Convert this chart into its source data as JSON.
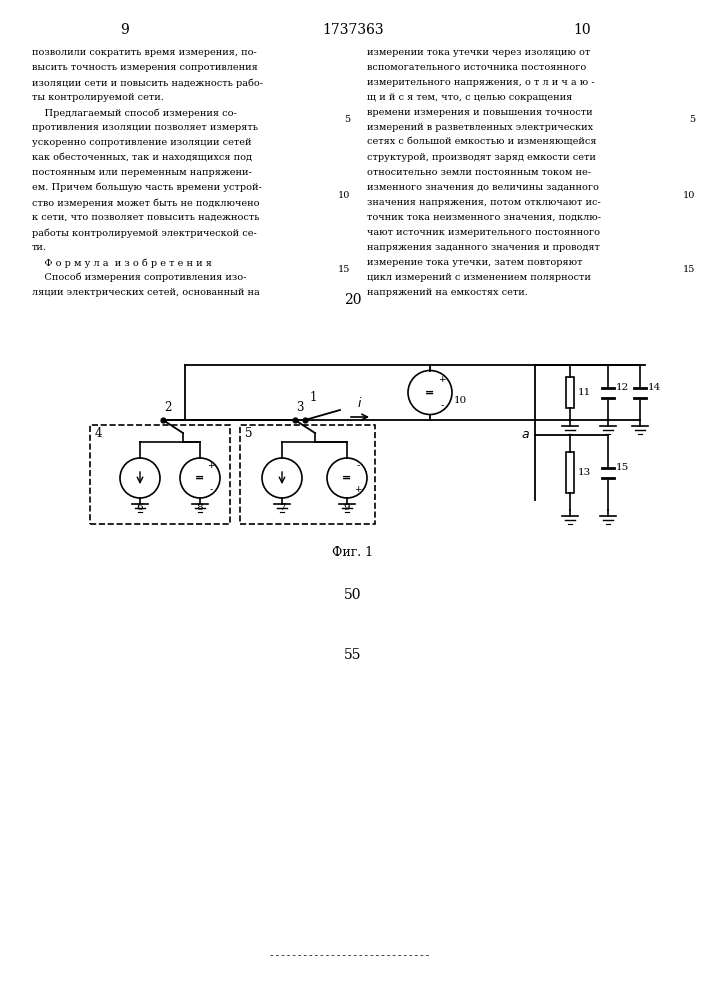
{
  "page_num_left": "9",
  "page_num_center": "1737363",
  "page_num_right": "10",
  "left_text": [
    "позволили сократить время измерения, по-",
    "высить точность измерения сопротивления",
    "изоляции сети и повысить надежность рабо-",
    "ты контролируемой сети.",
    "    Предлагаемый способ измерения со-",
    "противления изоляции позволяет измерять",
    "ускоренно сопротивление изоляции сетей",
    "как обесточенных, так и находящихся под",
    "постоянным или переменным напряжени-",
    "ем. Причем большую часть времени устрой-",
    "ство измерения может быть не подключено",
    "к сети, что позволяет повысить надежность",
    "работы контролируемой электрической се-",
    "ти.",
    "    Ф о р м у л а  и з о б р е т е н и я",
    "    Способ измерения сопротивления изо-",
    "ляции электрических сетей, основанный на"
  ],
  "right_text": [
    "измерении тока утечки через изоляцию от",
    "вспомогательного источника постоянного",
    "измерительного напряжения, о т л и ч а ю -",
    "щ и й с я тем, что, с целью сокращения",
    "времени измерения и повышения точности",
    "измерений в разветвленных электрических",
    "сетях с большой емкостью и изменяющейся",
    "структурой, производят заряд емкости сети",
    "относительно земли постоянным током не-",
    "изменного значения до величины заданного",
    "значения напряжения, потом отключают ис-",
    "точник тока неизменного значения, подклю-",
    "чают источник измерительного постоянного",
    "напряжения заданного значения и проводят",
    "измерение тока утечки, затем повторяют",
    "цикл измерений с изменением полярности",
    "напряжений на емкостях сети."
  ],
  "num_20": "20",
  "fig_label": "Фиг. 1",
  "num_50": "50",
  "num_55": "55",
  "bg_color": "#ffffff",
  "text_color": "#000000",
  "lnum_5_row": 4.5,
  "lnum_10_row": 9.5,
  "lnum_15_row": 14.5
}
